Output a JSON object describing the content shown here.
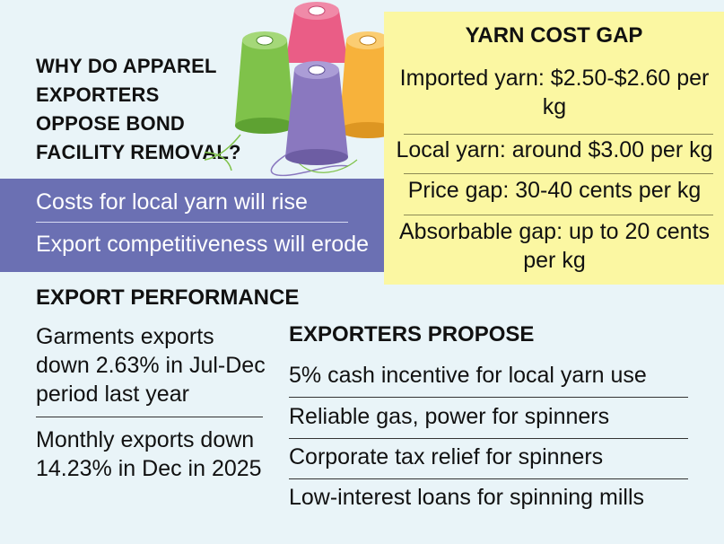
{
  "question": "WHY DO APPAREL EXPORTERS OPPOSE BOND FACILITY REMOVAL?",
  "concerns": [
    "Costs for local yarn will rise",
    "Export competitiveness will erode"
  ],
  "yarn_cost_gap": {
    "title": "YARN COST GAP",
    "items": [
      "Imported yarn: $2.50-$2.60 per kg",
      "Local yarn: around $3.00 per kg",
      "Price gap: 30-40 cents per kg",
      "Absorbable gap: up to 20 cents per kg"
    ]
  },
  "export_performance": {
    "title": "EXPORT PERFORMANCE",
    "items": [
      "Garments exports down 2.63% in Jul-Dec period last year",
      "Monthly exports down 14.23% in Dec in 2025"
    ]
  },
  "exporters_propose": {
    "title": "EXPORTERS PROPOSE",
    "items": [
      "5% cash incentive for local yarn use",
      "Reliable gas, power for spinners",
      "Corporate tax relief for spinners",
      "Low-interest loans for spinning mills"
    ]
  },
  "colors": {
    "background": "#e9f4f8",
    "concerns_band": "#6b70b3",
    "yarn_box": "#fbf7a2",
    "spool_green": "#7fc24a",
    "spool_pink": "#ea5d86",
    "spool_orange": "#f7b23b",
    "spool_purple": "#8a78bf"
  },
  "illustration": "yarn-spools-icon"
}
